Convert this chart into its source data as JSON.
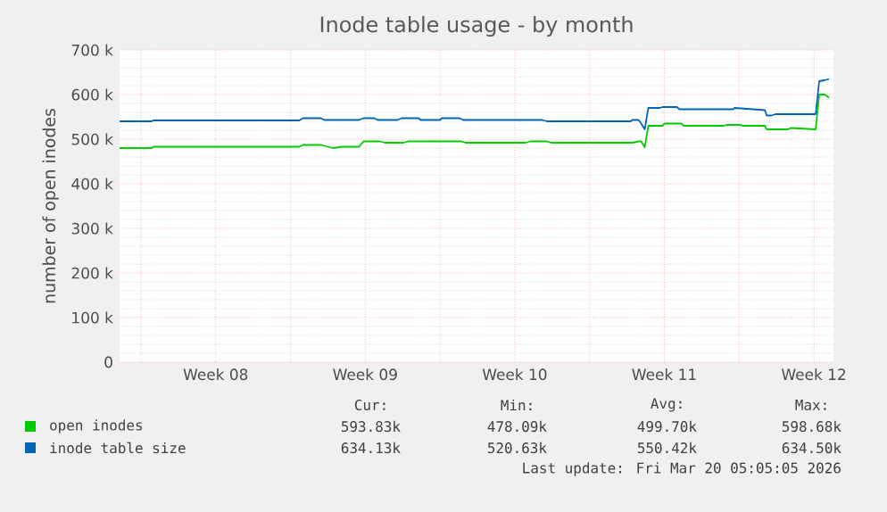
{
  "chart_data": {
    "type": "line",
    "title": "Inode table usage - by month",
    "ylabel": "number of open inodes",
    "xlim": [
      "2026-02-15T00:00",
      "2026-03-20T10:00"
    ],
    "ylim": [
      0,
      700000
    ],
    "xticks": [
      {
        "value": "2026-02-16",
        "label": null
      },
      {
        "value": "2026-02-19T12:00",
        "label": "Week 08"
      },
      {
        "value": "2026-02-23",
        "label": null
      },
      {
        "value": "2026-02-26T12:00",
        "label": "Week 09"
      },
      {
        "value": "2026-03-02",
        "label": null
      },
      {
        "value": "2026-03-05T12:00",
        "label": "Week 10"
      },
      {
        "value": "2026-03-09",
        "label": null
      },
      {
        "value": "2026-03-12T12:00",
        "label": "Week 11"
      },
      {
        "value": "2026-03-16",
        "label": null
      },
      {
        "value": "2026-03-19T12:00",
        "label": "Week 12"
      }
    ],
    "yticks": [
      0,
      {
        "value": 100000,
        "label": "100 k"
      },
      {
        "value": 200000,
        "label": "200 k"
      },
      {
        "value": 300000,
        "label": "300 k"
      },
      {
        "value": 400000,
        "label": "400 k"
      },
      {
        "value": 500000,
        "label": "500 k"
      },
      {
        "value": 600000,
        "label": "600 k"
      },
      {
        "value": 700000,
        "label": "700 k"
      }
    ],
    "grid": true,
    "legend": "bottom",
    "series": [
      {
        "name": "open inodes",
        "color": "#00cc00",
        "x": [
          "2026-02-15T00:00",
          "2026-02-16T12:00",
          "2026-02-16T14:00",
          "2026-02-23T10:00",
          "2026-02-23T14:00",
          "2026-02-24T10:00",
          "2026-02-25T00:00",
          "2026-02-25T10:00",
          "2026-02-26T05:00",
          "2026-02-26T10:00",
          "2026-02-27T05:00",
          "2026-02-27T10:00",
          "2026-02-28T07:00",
          "2026-02-28T12:00",
          "2026-03-03T00:00",
          "2026-03-03T05:00",
          "2026-03-06T00:00",
          "2026-03-06T05:00",
          "2026-03-07T00:00",
          "2026-03-07T05:00",
          "2026-03-11T00:00",
          "2026-03-11T07:00",
          "2026-03-11T10:00",
          "2026-03-11T14:00",
          "2026-03-11T18:00",
          "2026-03-12T10:00",
          "2026-03-12T12:00",
          "2026-03-13T07:00",
          "2026-03-13T10:00",
          "2026-03-15T07:00",
          "2026-03-15T10:00",
          "2026-03-16T00:00",
          "2026-03-16T05:00",
          "2026-03-17T05:00",
          "2026-03-17T07:00",
          "2026-03-18T07:00",
          "2026-03-18T10:00",
          "2026-03-19T14:00",
          "2026-03-19T18:00",
          "2026-03-20T00:00",
          "2026-03-20T05:00"
        ],
        "values": [
          480000,
          480000,
          483000,
          483000,
          487000,
          487000,
          480000,
          483000,
          483000,
          495000,
          495000,
          492000,
          492000,
          495000,
          495000,
          492000,
          492000,
          495000,
          495000,
          492000,
          492000,
          495000,
          495000,
          482000,
          530000,
          530000,
          535000,
          535000,
          530000,
          530000,
          532000,
          532000,
          530000,
          530000,
          522000,
          522000,
          525000,
          522000,
          600000,
          600000,
          593000
        ]
      },
      {
        "name": "inode table size",
        "color": "#0066b3",
        "x": [
          "2026-02-15T00:00",
          "2026-02-16T12:00",
          "2026-02-16T14:00",
          "2026-02-23T10:00",
          "2026-02-23T14:00",
          "2026-02-24T10:00",
          "2026-02-24T14:00",
          "2026-02-26T05:00",
          "2026-02-26T10:00",
          "2026-02-26T22:00",
          "2026-02-27T02:00",
          "2026-02-28T00:00",
          "2026-02-28T05:00",
          "2026-03-01T00:00",
          "2026-03-01T02:00",
          "2026-03-02T00:00",
          "2026-03-02T02:00",
          "2026-03-02T22:00",
          "2026-03-03T02:00",
          "2026-03-06T19:00",
          "2026-03-07T00:00",
          "2026-03-10T22:00",
          "2026-03-11T00:00",
          "2026-03-11T07:00",
          "2026-03-11T10:00",
          "2026-03-11T14:00",
          "2026-03-11T18:00",
          "2026-03-12T07:00",
          "2026-03-12T10:00",
          "2026-03-13T02:00",
          "2026-03-13T05:00",
          "2026-03-15T17:00",
          "2026-03-15T19:00",
          "2026-03-17T05:00",
          "2026-03-17T07:00",
          "2026-03-17T12:00",
          "2026-03-17T17:00",
          "2026-03-19T14:00",
          "2026-03-19T18:00",
          "2026-03-20T00:00",
          "2026-03-20T05:00"
        ],
        "values": [
          540000,
          540000,
          542000,
          542000,
          547000,
          547000,
          543000,
          543000,
          547000,
          547000,
          543000,
          543000,
          547000,
          547000,
          543000,
          543000,
          547000,
          547000,
          543000,
          543000,
          540000,
          540000,
          543000,
          543000,
          535000,
          522000,
          570000,
          570000,
          572000,
          572000,
          567000,
          567000,
          570000,
          565000,
          553000,
          553000,
          556000,
          556000,
          630000,
          632000,
          635000
        ]
      }
    ],
    "annotations": [
      "Cur:",
      "Min:",
      "Avg:",
      "Max:",
      "593.83k",
      "478.09k",
      "499.70k",
      "598.68k",
      "634.13k",
      "520.63k",
      "550.42k",
      "634.50k",
      "Last update: Fri Mar 20 05:05:05 2026"
    ]
  }
}
